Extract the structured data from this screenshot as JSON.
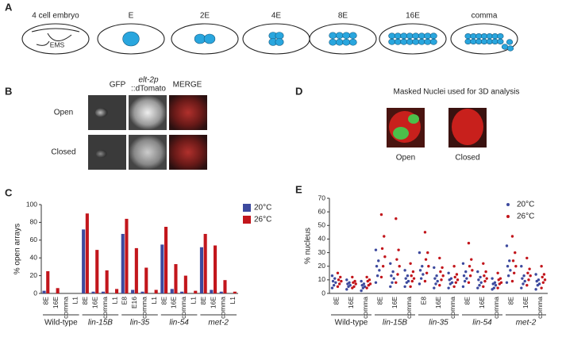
{
  "panel_labels": [
    "A",
    "B",
    "C",
    "D",
    "E"
  ],
  "panel_a": {
    "stages": [
      "4 cell embryo",
      "E",
      "2E",
      "4E",
      "8E",
      "16E",
      "comma"
    ],
    "ems": "EMS"
  },
  "panel_b": {
    "columns": [
      "GFP",
      "elt-2p",
      "::dTomato",
      "MERGE"
    ],
    "rows": [
      "Open",
      "Closed"
    ]
  },
  "panel_d": {
    "title": "Masked Nuclei used for 3D analysis",
    "labels": [
      "Open",
      "Closed"
    ]
  },
  "chart_data": [
    {
      "type": "bar",
      "ylabel": "% open arrays",
      "categories": [
        "8E",
        "16E",
        "comma",
        "L1",
        "8E",
        "16E",
        "comma",
        "L1",
        "E8",
        "E16",
        "comma",
        "L1",
        "8E",
        "16E",
        "comma",
        "L1",
        "8E",
        "16E",
        "comma",
        "L1"
      ],
      "groups": [
        "Wild-type",
        "lin-15B",
        "lin-35",
        "lin-54",
        "met-2"
      ],
      "series": [
        {
          "name": "20°C",
          "color": "#3d4a9e",
          "values": [
            3,
            0,
            0,
            0,
            72,
            2,
            2,
            0,
            67,
            4,
            2,
            0,
            55,
            5,
            2,
            0,
            52,
            4,
            2,
            0
          ]
        },
        {
          "name": "26°C",
          "color": "#c2161c",
          "values": [
            25,
            6,
            0,
            0,
            90,
            49,
            26,
            5,
            84,
            51,
            29,
            4,
            75,
            33,
            20,
            3,
            67,
            54,
            15,
            2
          ]
        }
      ],
      "ylim": [
        0,
        100
      ],
      "yticks": [
        0,
        20,
        40,
        60,
        80,
        100
      ],
      "legend": "top-right"
    },
    {
      "type": "scatter",
      "ylabel": "% nucleus",
      "categories": [
        "8E",
        "16E",
        "comma",
        "8E",
        "16E",
        "comma",
        "E8",
        "16E",
        "comma",
        "8E",
        "16E",
        "comma",
        "8E",
        "16E",
        "comma"
      ],
      "groups": [
        "Wild-type",
        "lin-15B",
        "lin-35",
        "lin-54",
        "met-2"
      ],
      "series": [
        {
          "name": "20°C",
          "color": "#3d4a9e",
          "values": [
            [
              4,
              6,
              8,
              9,
              11,
              13
            ],
            [
              3,
              5,
              6,
              7,
              8,
              10
            ],
            [
              2,
              4,
              5,
              6,
              7,
              9
            ],
            [
              8,
              13,
              17,
              20,
              24,
              32
            ],
            [
              5,
              8,
              11,
              13,
              16,
              22
            ],
            [
              5,
              8,
              9,
              11,
              13,
              17
            ],
            [
              7,
              11,
              14,
              17,
              20,
              30
            ],
            [
              4,
              7,
              9,
              11,
              13,
              19
            ],
            [
              4,
              7,
              8,
              10,
              11,
              15
            ],
            [
              5,
              9,
              11,
              13,
              16,
              22
            ],
            [
              4,
              6,
              8,
              10,
              12,
              16
            ],
            [
              3,
              4,
              6,
              7,
              8,
              11
            ],
            [
              8,
              13,
              17,
              20,
              24,
              35
            ],
            [
              4,
              7,
              9,
              11,
              13,
              20
            ],
            [
              3,
              6,
              7,
              9,
              10,
              14
            ]
          ]
        },
        {
          "name": "26°C",
          "color": "#c2161c",
          "values": [
            [
              5,
              7,
              9,
              10,
              12,
              15
            ],
            [
              4,
              5,
              7,
              8,
              9,
              12
            ],
            [
              4,
              6,
              7,
              9,
              10,
              12
            ],
            [
              12,
              20,
              27,
              33,
              42,
              58
            ],
            [
              8,
              14,
              20,
              25,
              32,
              55
            ],
            [
              5,
              9,
              11,
              13,
              16,
              22
            ],
            [
              9,
              15,
              20,
              25,
              30,
              45
            ],
            [
              6,
              10,
              13,
              16,
              19,
              26
            ],
            [
              5,
              8,
              10,
              12,
              14,
              20
            ],
            [
              8,
              13,
              17,
              20,
              25,
              37
            ],
            [
              5,
              9,
              11,
              13,
              16,
              22
            ],
            [
              4,
              7,
              8,
              10,
              11,
              15
            ],
            [
              9,
              15,
              20,
              24,
              30,
              42
            ],
            [
              6,
              10,
              13,
              15,
              18,
              26
            ],
            [
              4,
              8,
              10,
              12,
              14,
              20
            ]
          ]
        }
      ],
      "ylim": [
        0,
        70
      ],
      "yticks": [
        0,
        10,
        20,
        30,
        40,
        50,
        60,
        70
      ],
      "legend": "top-right"
    }
  ]
}
